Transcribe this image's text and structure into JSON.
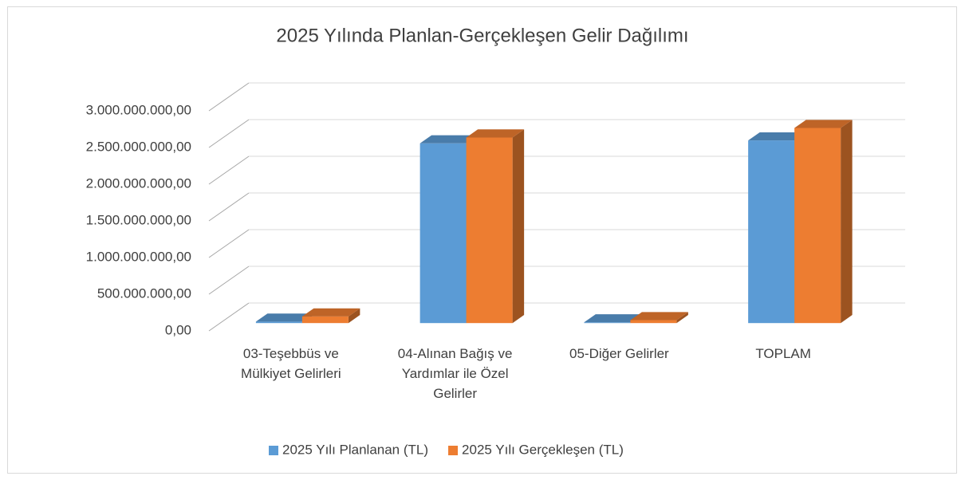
{
  "chart_data": {
    "type": "bar3d",
    "title": "2025 Yılında Planlan-Gerçekleşen Gelir Dağılımı",
    "categories": [
      "03-Teşebbüs ve Mülkiyet Gelirleri",
      "04-Alınan Bağış ve Yardımlar ile Özel Gelirler",
      "05-Diğer Gelirler",
      "TOPLAM"
    ],
    "series": [
      {
        "name": "2025 Yılı Planlanan (TL)",
        "color": "#5b9bd5",
        "values": [
          20000000,
          2450000000,
          10000000,
          2490000000
        ]
      },
      {
        "name": "2025 Yılı Gerçekleşen (TL)",
        "color": "#ed7d31",
        "values": [
          90000000,
          2530000000,
          40000000,
          2660000000
        ]
      }
    ],
    "ylim": [
      0,
      3000000000
    ],
    "yticks": [
      {
        "value": 0,
        "label": "0,00"
      },
      {
        "value": 500000000,
        "label": "500.000.000,00"
      },
      {
        "value": 1000000000,
        "label": "1.000.000.000,00"
      },
      {
        "value": 1500000000,
        "label": "1.500.000.000,00"
      },
      {
        "value": 2000000000,
        "label": "2.000.000.000,00"
      },
      {
        "value": 2500000000,
        "label": "2.500.000.000,00"
      },
      {
        "value": 3000000000,
        "label": "3.000.000.000,00"
      }
    ],
    "grid": true,
    "legend": "bottom"
  }
}
